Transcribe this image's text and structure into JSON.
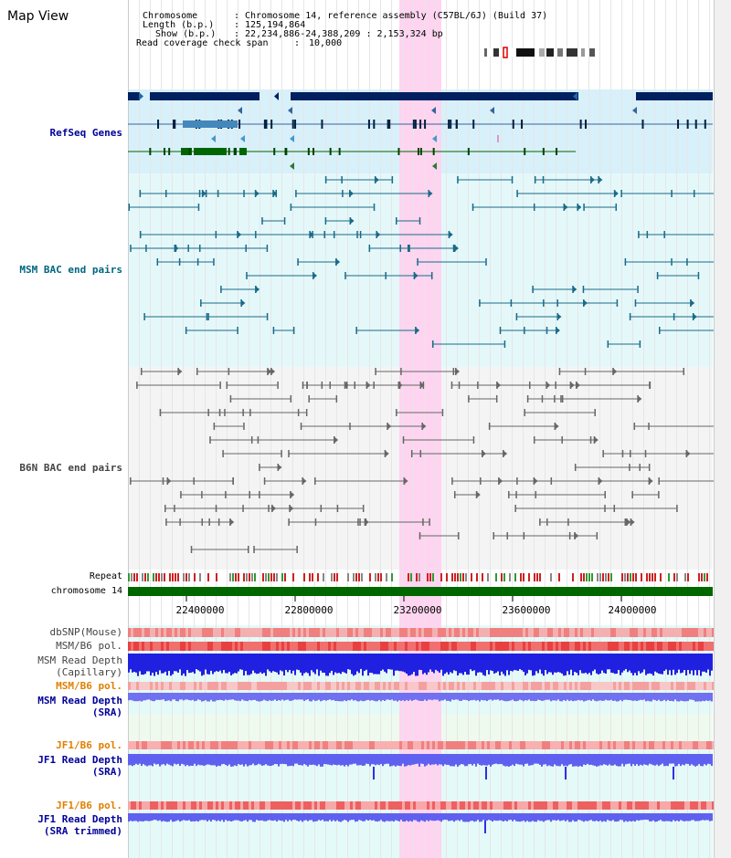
{
  "view_title": "Map View",
  "info": {
    "chromosome_label": "Chromosome",
    "chromosome_value": "Chromosome 14, reference assembly (C57BL/6J) (Build 37)",
    "length_label": "Length (b.p.)",
    "length_value": "125,194,864",
    "show_label": "Show (b.p.)",
    "show_value": "22,234,886-24,388,209 : 2,153,324 bp",
    "coverage_label": "Read coverage check span",
    "coverage_value": "10,000"
  },
  "tracks": {
    "refseq": "RefSeq Genes",
    "msm_bac": "MSM BAC end pairs",
    "b6n_bac": "B6N BAC end pairs",
    "repeat": "Repeat",
    "chromosome": "chromosome 14",
    "dbsnp": "dbSNP(Mouse)",
    "msm_b6_pol_1": "MSM/B6 pol.",
    "msm_depth_cap_1": "MSM Read Depth",
    "msm_depth_cap_2": "(Capillary)",
    "msm_b6_pol_2": "MSM/B6 pol.",
    "msm_depth_sra_1": "MSM Read Depth",
    "msm_depth_sra_2": "(SRA)",
    "jf1_b6_pol_1": "JF1/B6 pol.",
    "jf1_depth_1": "JF1 Read Depth",
    "jf1_depth_2": "(SRA)",
    "jf1_b6_pol_2": "JF1/B6 pol.",
    "jf1_trim_1": "JF1 Read Depth",
    "jf1_trim_2": "(SRA trimmed)"
  },
  "axis_ticks": [
    "22400000",
    "22800000",
    "23200000",
    "23600000",
    "24000000"
  ],
  "colors": {
    "refseq_label": "#000099",
    "msm_label": "#006680",
    "b6n_label": "#444444",
    "orange_label": "#e08000",
    "blue_label": "#000099",
    "highlight": "#ffd0f0",
    "chromosome_bar": "#006600"
  }
}
